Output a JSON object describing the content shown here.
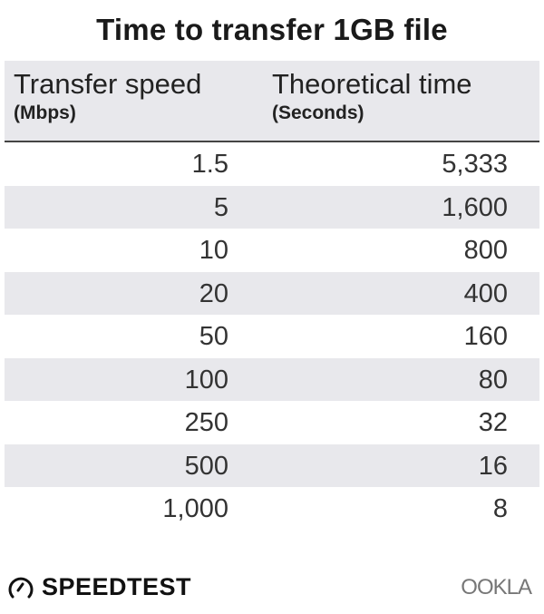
{
  "title": "Time to transfer 1GB file",
  "chart_data": {
    "type": "table",
    "title": "Time to transfer 1GB file",
    "columns": [
      {
        "label": "Transfer speed",
        "unit": "(Mbps)"
      },
      {
        "label": "Theoretical time",
        "unit": "(Seconds)"
      }
    ],
    "rows": [
      [
        "1.5",
        "5,333"
      ],
      [
        "5",
        "1,600"
      ],
      [
        "10",
        "800"
      ],
      [
        "20",
        "400"
      ],
      [
        "50",
        "160"
      ],
      [
        "100",
        "80"
      ],
      [
        "250",
        "32"
      ],
      [
        "500",
        "16"
      ],
      [
        "1,000",
        "8"
      ]
    ],
    "stripe_color": "#e8e8ec"
  },
  "footer": {
    "brand_left": "SPEEDTEST",
    "brand_right": "OOKLA"
  }
}
